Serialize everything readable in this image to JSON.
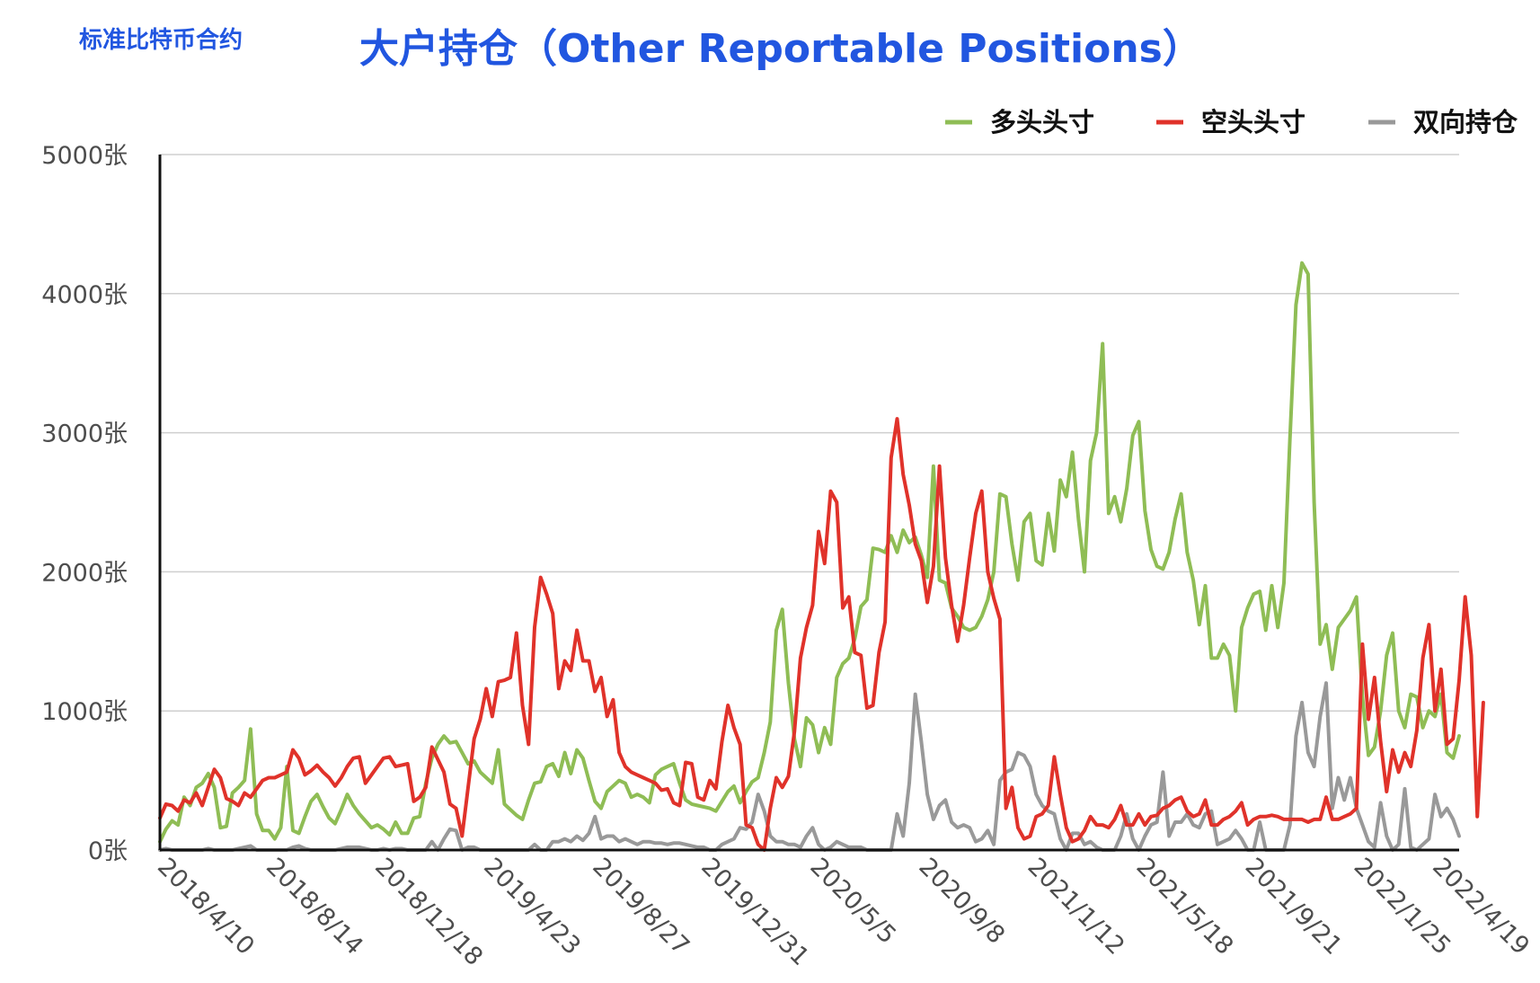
{
  "header": {
    "corner_title": "标准比特币合约",
    "main_title": "大户持仓（Other Reportable Positions）"
  },
  "chart_data": {
    "type": "line",
    "title": "大户持仓（Other Reportable Positions）",
    "ylim": [
      0,
      5000
    ],
    "yticks": [
      "0张",
      "1000张",
      "2000张",
      "3000张",
      "4000张",
      "5000张"
    ],
    "xtick_labels": [
      "2018/4/10",
      "2018/8/14",
      "2018/12/18",
      "2019/4/23",
      "2019/8/27",
      "2019/12/31",
      "2020/5/5",
      "2020/9/8",
      "2021/1/12",
      "2021/5/18",
      "2021/9/21",
      "2022/1/25",
      "2022/4/19"
    ],
    "xtick_index": [
      0,
      18,
      36,
      54,
      72,
      90,
      108,
      126,
      144,
      162,
      180,
      198,
      211
    ],
    "grid": true,
    "legend_position": "top-right",
    "series": [
      {
        "name": "多头头寸",
        "color": "#8fbd55",
        "values": [
          60,
          150,
          210,
          180,
          380,
          320,
          450,
          480,
          550,
          450,
          160,
          170,
          410,
          450,
          500,
          870,
          260,
          140,
          140,
          80,
          160,
          600,
          140,
          120,
          240,
          350,
          400,
          310,
          230,
          190,
          290,
          400,
          320,
          260,
          210,
          160,
          180,
          150,
          110,
          200,
          120,
          120,
          230,
          240,
          480,
          660,
          760,
          820,
          770,
          780,
          700,
          620,
          640,
          560,
          520,
          480,
          720,
          330,
          290,
          250,
          220,
          360,
          480,
          490,
          600,
          620,
          530,
          700,
          550,
          720,
          660,
          500,
          350,
          300,
          420,
          460,
          500,
          480,
          380,
          400,
          380,
          340,
          540,
          580,
          600,
          620,
          480,
          360,
          330,
          320,
          310,
          300,
          280,
          350,
          420,
          460,
          340,
          420,
          490,
          520,
          700,
          920,
          1580,
          1730,
          1200,
          800,
          600,
          950,
          900,
          700,
          880,
          760,
          1240,
          1340,
          1380,
          1520,
          1750,
          1800,
          2170,
          2160,
          2140,
          2260,
          2140,
          2300,
          2210,
          2250,
          2120,
          1960,
          2760,
          1940,
          1920,
          1740,
          1680,
          1600,
          1580,
          1600,
          1680,
          1800,
          2000,
          2560,
          2540,
          2200,
          1940,
          2360,
          2420,
          2080,
          2050,
          2420,
          2150,
          2660,
          2540,
          2860,
          2380,
          2000,
          2800,
          3000,
          3640,
          2420,
          2540,
          2360,
          2600,
          2980,
          3080,
          2440,
          2160,
          2040,
          2020,
          2140,
          2380,
          2560,
          2140,
          1940,
          1620,
          1900,
          1380,
          1380,
          1480,
          1400,
          1000,
          1600,
          1740,
          1840,
          1860,
          1580,
          1900,
          1600,
          1920,
          2960,
          3920,
          4220,
          4140,
          2500,
          1480,
          1620,
          1300,
          1600,
          1660,
          1720,
          1820,
          1100,
          680,
          740,
          1000,
          1400,
          1560,
          1000,
          880,
          1120,
          1100,
          880,
          1000,
          960,
          1120,
          700,
          660,
          820
        ]
      },
      {
        "name": "空头头寸",
        "color": "#e0322a",
        "values": [
          230,
          330,
          320,
          280,
          360,
          340,
          410,
          320,
          450,
          580,
          520,
          370,
          350,
          320,
          410,
          380,
          440,
          500,
          520,
          520,
          540,
          560,
          720,
          660,
          540,
          570,
          610,
          560,
          520,
          460,
          520,
          600,
          660,
          670,
          480,
          540,
          600,
          660,
          670,
          600,
          610,
          620,
          350,
          380,
          450,
          740,
          650,
          560,
          330,
          300,
          100,
          450,
          800,
          940,
          1160,
          960,
          1210,
          1220,
          1240,
          1560,
          1040,
          760,
          1600,
          1960,
          1840,
          1700,
          1160,
          1360,
          1290,
          1580,
          1360,
          1360,
          1140,
          1240,
          960,
          1080,
          700,
          600,
          560,
          540,
          520,
          500,
          480,
          430,
          440,
          340,
          320,
          630,
          620,
          380,
          360,
          500,
          440,
          780,
          1040,
          880,
          760,
          180,
          160,
          40,
          0,
          300,
          520,
          450,
          530,
          850,
          1380,
          1600,
          1760,
          2290,
          2060,
          2580,
          2500,
          1740,
          1820,
          1420,
          1400,
          1020,
          1040,
          1420,
          1640,
          2820,
          3100,
          2700,
          2480,
          2200,
          2080,
          1780,
          2040,
          2760,
          2100,
          1760,
          1500,
          1760,
          2100,
          2420,
          2580,
          2000,
          1810,
          1660,
          300,
          450,
          160,
          80,
          100,
          240,
          260,
          320,
          670,
          400,
          160,
          60,
          80,
          140,
          240,
          180,
          180,
          160,
          220,
          320,
          180,
          180,
          260,
          180,
          240,
          250,
          300,
          320,
          360,
          380,
          280,
          240,
          260,
          360,
          180,
          180,
          220,
          240,
          280,
          340,
          180,
          220,
          240,
          240,
          250,
          240,
          220,
          220,
          220,
          220,
          200,
          220,
          220,
          380,
          220,
          220,
          240,
          260,
          300,
          1480,
          940,
          1240,
          780,
          420,
          720,
          560,
          700,
          600,
          860,
          1380,
          1620,
          1000,
          1300,
          760,
          800,
          1220,
          1820,
          1400,
          240,
          1060
        ]
      },
      {
        "name": "双向持仓",
        "color": "#999999",
        "values": [
          0,
          10,
          0,
          0,
          0,
          0,
          0,
          0,
          10,
          0,
          0,
          0,
          0,
          10,
          20,
          30,
          0,
          0,
          0,
          0,
          0,
          0,
          20,
          30,
          10,
          0,
          0,
          0,
          0,
          0,
          10,
          20,
          20,
          20,
          10,
          0,
          0,
          10,
          0,
          10,
          10,
          0,
          0,
          0,
          0,
          60,
          0,
          80,
          150,
          140,
          0,
          20,
          20,
          0,
          0,
          0,
          0,
          0,
          0,
          0,
          0,
          0,
          40,
          0,
          0,
          60,
          60,
          80,
          60,
          100,
          70,
          120,
          240,
          80,
          100,
          100,
          60,
          80,
          60,
          40,
          60,
          60,
          50,
          50,
          40,
          50,
          50,
          40,
          30,
          20,
          20,
          0,
          0,
          40,
          60,
          80,
          160,
          150,
          200,
          400,
          280,
          100,
          60,
          60,
          40,
          40,
          20,
          100,
          160,
          40,
          0,
          20,
          60,
          40,
          20,
          20,
          20,
          0,
          0,
          0,
          0,
          0,
          260,
          100,
          480,
          1120,
          780,
          400,
          220,
          320,
          360,
          200,
          160,
          180,
          160,
          60,
          80,
          140,
          40,
          500,
          560,
          580,
          700,
          680,
          600,
          400,
          320,
          280,
          260,
          80,
          0,
          120,
          120,
          40,
          60,
          20,
          0,
          0,
          0,
          100,
          260,
          80,
          0,
          100,
          180,
          200,
          560,
          100,
          200,
          200,
          260,
          180,
          160,
          260,
          280,
          40,
          60,
          80,
          140,
          80,
          0,
          0,
          200,
          0,
          0,
          0,
          0,
          180,
          820,
          1060,
          700,
          600,
          960,
          1200,
          300,
          520,
          360,
          520,
          300,
          180,
          60,
          20,
          340,
          100,
          0,
          40,
          440,
          20,
          0,
          40,
          80,
          400,
          240,
          300,
          220,
          100
        ]
      }
    ]
  }
}
